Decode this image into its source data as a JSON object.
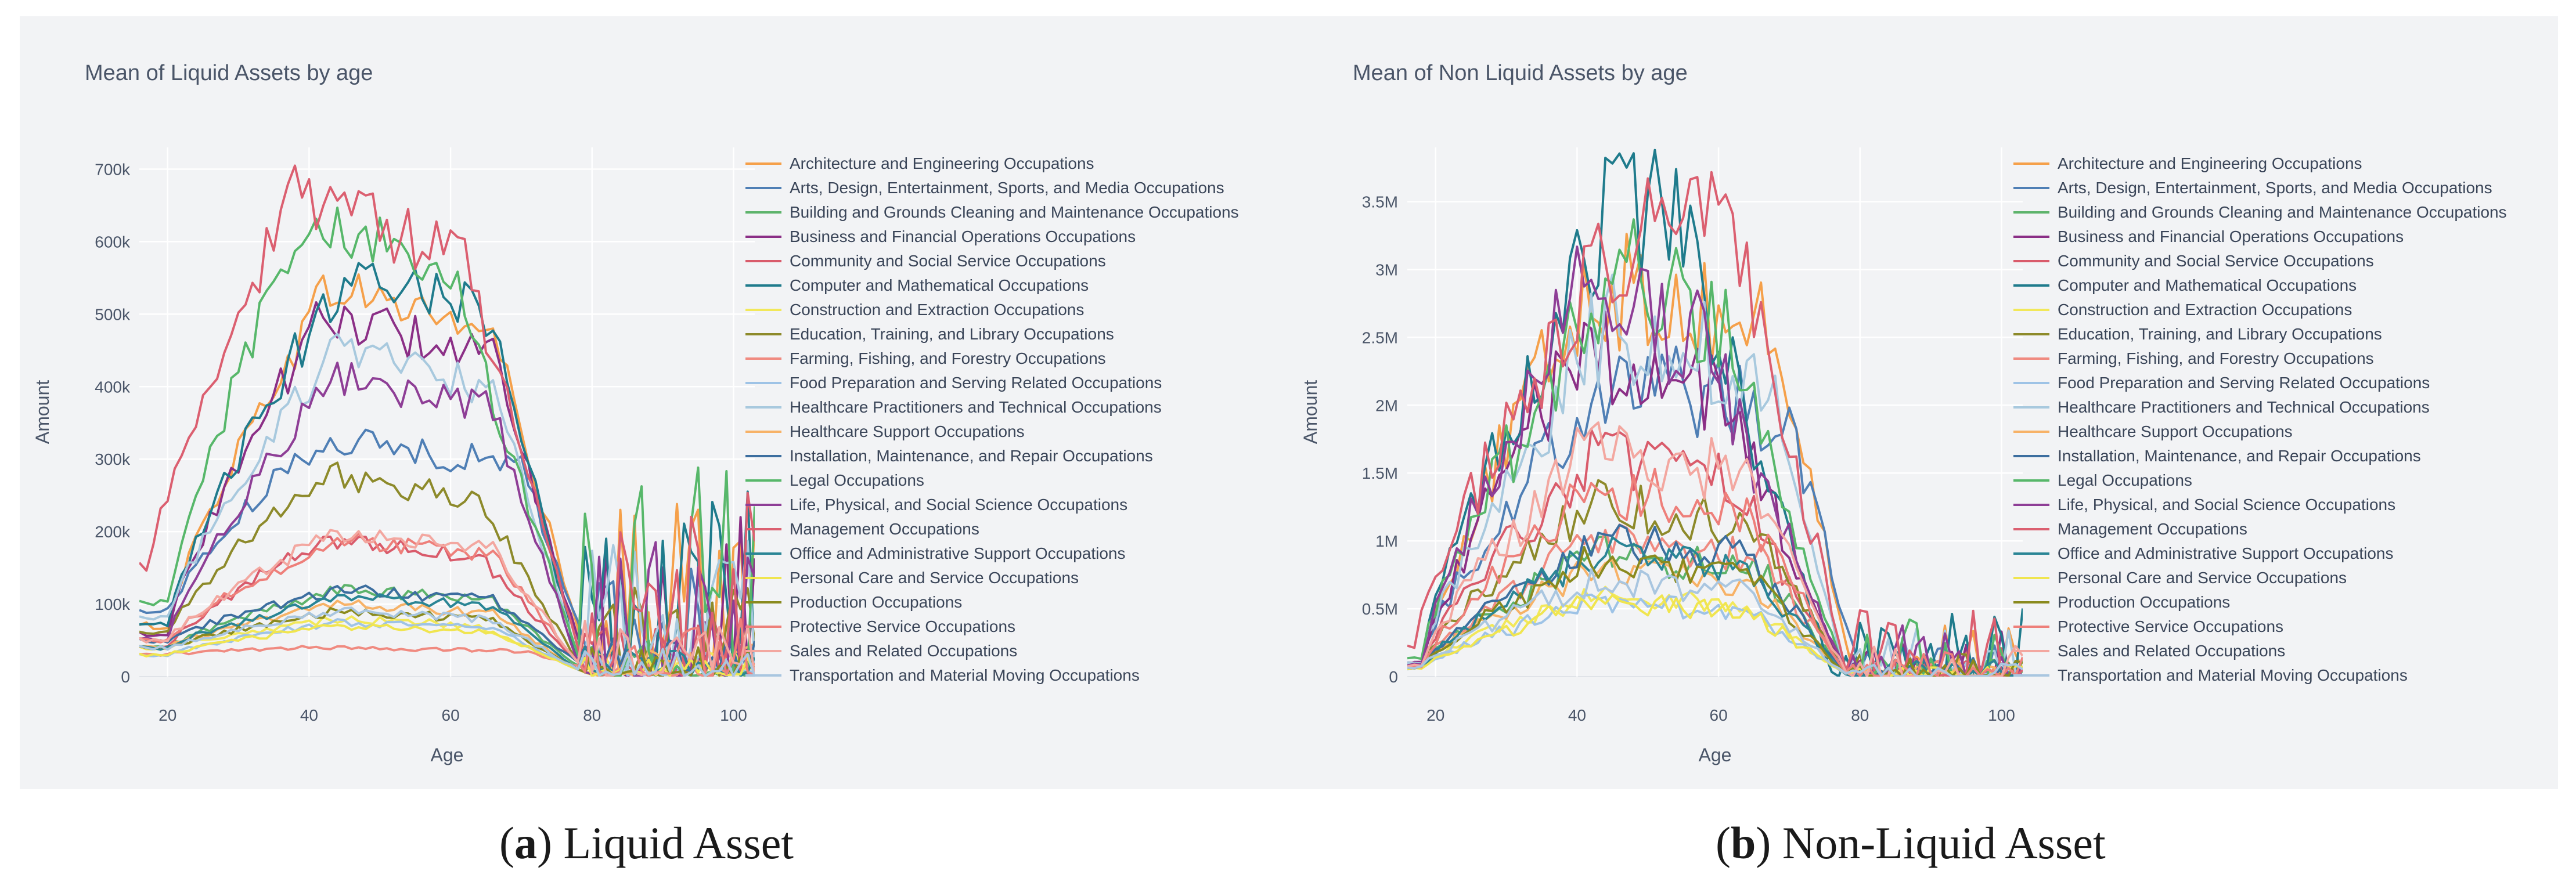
{
  "chart_data": [
    {
      "type": "line",
      "panel_id": "a",
      "title": "Mean of Liquid Assets by age",
      "xlabel": "Age",
      "ylabel": "Amount",
      "xlim": [
        16,
        103
      ],
      "ylim": [
        0,
        730000
      ],
      "xticks": [
        20,
        40,
        60,
        80,
        100
      ],
      "xtick_labels": [
        "20",
        "40",
        "60",
        "80",
        "100"
      ],
      "yticks": [
        0,
        100000,
        200000,
        300000,
        400000,
        500000,
        600000,
        700000
      ],
      "ytick_labels": [
        "0",
        "100k",
        "200k",
        "300k",
        "400k",
        "500k",
        "600k",
        "700k"
      ],
      "grid": true,
      "legend_position": "right",
      "noise_amp": 0.07,
      "tail_max": 150000,
      "caption": {
        "letter": "a",
        "text": "Liquid Asset"
      }
    },
    {
      "type": "line",
      "panel_id": "b",
      "title": "Mean of Non Liquid Assets by age",
      "xlabel": "Age",
      "ylabel": "Amount",
      "xlim": [
        16,
        103
      ],
      "ylim": [
        0,
        3900000
      ],
      "xticks": [
        20,
        40,
        60,
        80,
        100
      ],
      "xtick_labels": [
        "20",
        "40",
        "60",
        "80",
        "100"
      ],
      "yticks": [
        0,
        500000,
        1000000,
        1500000,
        2000000,
        2500000,
        3000000,
        3500000
      ],
      "ytick_labels": [
        "0",
        "0.5M",
        "1M",
        "1.5M",
        "2M",
        "2.5M",
        "3M",
        "3.5M"
      ],
      "grid": true,
      "legend_position": "right",
      "noise_amp": 0.16,
      "tail_max": 250000,
      "caption": {
        "letter": "b",
        "text": "Non-Liquid Asset"
      }
    }
  ],
  "series": [
    {
      "name": "Architecture and Engineering Occupations",
      "color": "#f5a04a",
      "liquid": {
        "start": 20,
        "peak": 43,
        "plateau": 66,
        "fall": 79,
        "start_val": 70000,
        "max": 540000,
        "end_val": 30000
      },
      "nonliquid": {
        "start": 18,
        "peak": 42,
        "plateau": 68,
        "fall": 79,
        "start_val": 100000,
        "max": 2900000,
        "end_val": 40000
      }
    },
    {
      "name": "Arts, Design, Entertainment, Sports, and Media Occupations",
      "color": "#4f7fb5",
      "liquid": {
        "start": 20,
        "peak": 42,
        "plateau": 70,
        "fall": 80,
        "start_val": 90000,
        "max": 330000,
        "end_val": 20000
      },
      "nonliquid": {
        "start": 18,
        "peak": 44,
        "plateau": 70,
        "fall": 80,
        "start_val": 120000,
        "max": 2200000,
        "end_val": 40000
      }
    },
    {
      "name": "Building and Grounds Cleaning and Maintenance Occupations",
      "color": "#5db36b",
      "liquid": {
        "start": 20,
        "peak": 44,
        "plateau": 66,
        "fall": 78,
        "start_val": 40000,
        "max": 120000,
        "end_val": 15000
      },
      "nonliquid": {
        "start": 18,
        "peak": 42,
        "plateau": 66,
        "fall": 78,
        "start_val": 70000,
        "max": 900000,
        "end_val": 30000
      }
    },
    {
      "name": "Business and Financial Operations Occupations",
      "color": "#8b2f86",
      "liquid": {
        "start": 20,
        "peak": 42,
        "plateau": 66,
        "fall": 79,
        "start_val": 60000,
        "max": 500000,
        "end_val": 20000
      },
      "nonliquid": {
        "start": 18,
        "peak": 40,
        "plateau": 60,
        "fall": 78,
        "start_val": 100000,
        "max": 2400000,
        "end_val": 30000
      }
    },
    {
      "name": "Community and Social Service Occupations",
      "color": "#d95b6b",
      "liquid": {
        "start": 20,
        "peak": 42,
        "plateau": 64,
        "fall": 78,
        "start_val": 40000,
        "max": 190000,
        "end_val": 20000
      },
      "nonliquid": {
        "start": 18,
        "peak": 42,
        "plateau": 62,
        "fall": 78,
        "start_val": 90000,
        "max": 1600000,
        "end_val": 30000
      }
    },
    {
      "name": "Computer and Mathematical Occupations",
      "color": "#1f7b8c",
      "liquid": {
        "start": 20,
        "peak": 46,
        "plateau": 66,
        "fall": 78,
        "start_val": 70000,
        "max": 570000,
        "end_val": 20000
      },
      "nonliquid": {
        "start": 18,
        "peak": 46,
        "plateau": 56,
        "fall": 76,
        "start_val": 100000,
        "max": 3600000,
        "end_val": 30000
      }
    },
    {
      "name": "Construction and Extraction Occupations",
      "color": "#f2e85a",
      "liquid": {
        "start": 20,
        "peak": 44,
        "plateau": 64,
        "fall": 78,
        "start_val": 40000,
        "max": 80000,
        "end_val": 10000
      },
      "nonliquid": {
        "start": 18,
        "peak": 42,
        "plateau": 64,
        "fall": 78,
        "start_val": 70000,
        "max": 600000,
        "end_val": 20000
      }
    },
    {
      "name": "Education, Training, and Library Occupations",
      "color": "#8d8a2a",
      "liquid": {
        "start": 20,
        "peak": 42,
        "plateau": 64,
        "fall": 78,
        "start_val": 60000,
        "max": 280000,
        "end_val": 20000
      },
      "nonliquid": {
        "start": 18,
        "peak": 42,
        "plateau": 64,
        "fall": 78,
        "start_val": 90000,
        "max": 1300000,
        "end_val": 30000
      }
    },
    {
      "name": "Farming, Fishing, and Forestry Occupations",
      "color": "#f08a80",
      "liquid": {
        "start": 18,
        "peak": 40,
        "plateau": 70,
        "fall": 80,
        "start_val": 30000,
        "max": 40000,
        "end_val": 10000
      },
      "nonliquid": {
        "start": 18,
        "peak": 42,
        "plateau": 66,
        "fall": 78,
        "start_val": 80000,
        "max": 1000000,
        "end_val": 20000
      }
    },
    {
      "name": "Food Preparation and Serving Related Occupations",
      "color": "#9ec3e6",
      "liquid": {
        "start": 20,
        "peak": 44,
        "plateau": 66,
        "fall": 78,
        "start_val": 30000,
        "max": 75000,
        "end_val": 10000
      },
      "nonliquid": {
        "start": 18,
        "peak": 42,
        "plateau": 64,
        "fall": 78,
        "start_val": 60000,
        "max": 550000,
        "end_val": 20000
      }
    },
    {
      "name": "Healthcare Practitioners and Technical Occupations",
      "color": "#a8c9de",
      "liquid": {
        "start": 20,
        "peak": 44,
        "plateau": 66,
        "fall": 78,
        "start_val": 80000,
        "max": 450000,
        "end_val": 30000
      },
      "nonliquid": {
        "start": 18,
        "peak": 44,
        "plateau": 66,
        "fall": 78,
        "start_val": 110000,
        "max": 2600000,
        "end_val": 40000
      }
    },
    {
      "name": "Healthcare Support Occupations",
      "color": "#f7b267",
      "liquid": {
        "start": 20,
        "peak": 44,
        "plateau": 66,
        "fall": 78,
        "start_val": 40000,
        "max": 100000,
        "end_val": 10000
      },
      "nonliquid": {
        "start": 18,
        "peak": 42,
        "plateau": 64,
        "fall": 78,
        "start_val": 70000,
        "max": 800000,
        "end_val": 20000
      }
    },
    {
      "name": "Installation, Maintenance, and Repair Occupations",
      "color": "#3c6e9f",
      "liquid": {
        "start": 20,
        "peak": 44,
        "plateau": 66,
        "fall": 78,
        "start_val": 50000,
        "max": 120000,
        "end_val": 20000
      },
      "nonliquid": {
        "start": 18,
        "peak": 44,
        "plateau": 64,
        "fall": 78,
        "start_val": 80000,
        "max": 1000000,
        "end_val": 30000
      }
    },
    {
      "name": "Legal Occupations",
      "color": "#57b76a",
      "liquid": {
        "start": 20,
        "peak": 40,
        "plateau": 60,
        "fall": 78,
        "start_val": 100000,
        "max": 640000,
        "end_val": 30000
      },
      "nonliquid": {
        "start": 18,
        "peak": 46,
        "plateau": 60,
        "fall": 78,
        "start_val": 150000,
        "max": 3000000,
        "end_val": 40000
      }
    },
    {
      "name": "Life, Physical, and Social Science Occupations",
      "color": "#8e3e96",
      "liquid": {
        "start": 20,
        "peak": 44,
        "plateau": 66,
        "fall": 78,
        "start_val": 50000,
        "max": 420000,
        "end_val": 20000
      },
      "nonliquid": {
        "start": 18,
        "peak": 40,
        "plateau": 58,
        "fall": 78,
        "start_val": 90000,
        "max": 2800000,
        "end_val": 30000
      }
    },
    {
      "name": "Management Occupations",
      "color": "#db5f70",
      "liquid": {
        "start": 17,
        "peak": 38,
        "plateau": 62,
        "fall": 78,
        "start_val": 150000,
        "max": 660000,
        "end_val": 40000
      },
      "nonliquid": {
        "start": 17,
        "peak": 50,
        "plateau": 64,
        "fall": 78,
        "start_val": 250000,
        "max": 3500000,
        "end_val": 50000
      }
    },
    {
      "name": "Office and Administrative Support Occupations",
      "color": "#2a8595",
      "liquid": {
        "start": 20,
        "peak": 44,
        "plateau": 66,
        "fall": 78,
        "start_val": 40000,
        "max": 110000,
        "end_val": 10000
      },
      "nonliquid": {
        "start": 18,
        "peak": 42,
        "plateau": 64,
        "fall": 78,
        "start_val": 70000,
        "max": 900000,
        "end_val": 20000
      }
    },
    {
      "name": "Personal Care and Service Occupations",
      "color": "#f0e54f",
      "liquid": {
        "start": 20,
        "peak": 44,
        "plateau": 66,
        "fall": 78,
        "start_val": 30000,
        "max": 70000,
        "end_val": 10000
      },
      "nonliquid": {
        "start": 18,
        "peak": 42,
        "plateau": 64,
        "fall": 78,
        "start_val": 60000,
        "max": 550000,
        "end_val": 20000
      }
    },
    {
      "name": "Production Occupations",
      "color": "#8a8a1e",
      "liquid": {
        "start": 20,
        "peak": 44,
        "plateau": 66,
        "fall": 78,
        "start_val": 40000,
        "max": 90000,
        "end_val": 10000
      },
      "nonliquid": {
        "start": 18,
        "peak": 42,
        "plateau": 64,
        "fall": 78,
        "start_val": 70000,
        "max": 850000,
        "end_val": 20000
      }
    },
    {
      "name": "Protective Service Occupations",
      "color": "#ee7f7a",
      "liquid": {
        "start": 20,
        "peak": 44,
        "plateau": 66,
        "fall": 78,
        "start_val": 50000,
        "max": 190000,
        "end_val": 20000
      },
      "nonliquid": {
        "start": 18,
        "peak": 42,
        "plateau": 64,
        "fall": 78,
        "start_val": 80000,
        "max": 1400000,
        "end_val": 30000
      }
    },
    {
      "name": "Sales and Related Occupations",
      "color": "#f3a7a0",
      "liquid": {
        "start": 20,
        "peak": 44,
        "plateau": 66,
        "fall": 78,
        "start_val": 50000,
        "max": 200000,
        "end_val": 20000
      },
      "nonliquid": {
        "start": 18,
        "peak": 42,
        "plateau": 64,
        "fall": 78,
        "start_val": 80000,
        "max": 1700000,
        "end_val": 30000
      }
    },
    {
      "name": "Transportation and Material Moving Occupations",
      "color": "#a9c6e0",
      "liquid": {
        "start": 20,
        "peak": 44,
        "plateau": 66,
        "fall": 78,
        "start_val": 40000,
        "max": 90000,
        "end_val": 10000
      },
      "nonliquid": {
        "start": 18,
        "peak": 42,
        "plateau": 64,
        "fall": 78,
        "start_val": 70000,
        "max": 700000,
        "end_val": 20000
      }
    }
  ]
}
